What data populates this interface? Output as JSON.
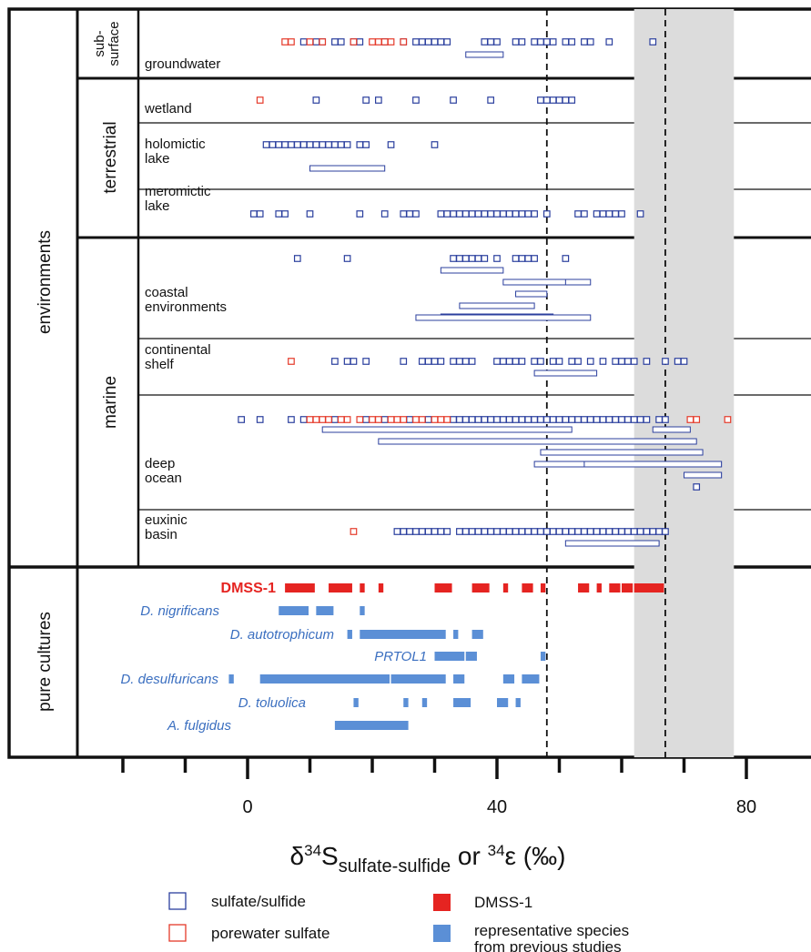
{
  "chart_data": {
    "type": "scatter",
    "xlabel": "δ34Ssulfate-sulfide or 34ε (‰)",
    "xlabel_parts": {
      "delta": "δ",
      "sup1": "34",
      "S": "S",
      "sub": "sulfate-sulfide",
      "or": " or ",
      "sup2": "34",
      "eps": "ε (‰)"
    },
    "xlim": [
      -20,
      90
    ],
    "xticks": [
      0,
      40,
      80
    ],
    "tick_labels": [
      "0",
      "40",
      "80"
    ],
    "reference_lines": [
      48,
      67
    ],
    "shaded_range": [
      62,
      78
    ],
    "colors": {
      "sulfide": "#2b3f9e",
      "porewater": "#e53a2a",
      "dmss": "#e52421",
      "species": "#5b8fd6"
    },
    "group_labels": {
      "environments": "environments",
      "subsurface": "sub-\nsurface",
      "terrestrial": "terrestrial",
      "marine": "marine",
      "pure_cultures": "pure cultures"
    },
    "categories": [
      {
        "name": "groundwater",
        "group": "sub-surface",
        "sulfide": [
          9,
          11,
          12,
          14,
          15,
          17,
          18,
          22,
          25,
          27,
          28,
          29,
          30,
          31,
          32,
          38,
          39,
          40,
          43,
          44,
          46,
          47,
          48,
          49,
          51,
          52,
          54,
          55,
          58,
          65
        ],
        "porewater": [
          6,
          7,
          10,
          12,
          17,
          20,
          21,
          22,
          23,
          25
        ],
        "ranges": [
          [
            35,
            41
          ]
        ]
      },
      {
        "name": "wetland",
        "group": "terrestrial",
        "sulfide": [
          11,
          19,
          21,
          27,
          33,
          39,
          47,
          48,
          49,
          50,
          51,
          52
        ],
        "porewater": [
          2
        ],
        "ranges": []
      },
      {
        "name": "holomictic lake",
        "group": "terrestrial",
        "sulfide": [
          3,
          4,
          5,
          6,
          7,
          8,
          9,
          10,
          11,
          12,
          13,
          14,
          15,
          16,
          18,
          19,
          23,
          30
        ],
        "porewater": [],
        "ranges": [
          [
            10,
            22
          ]
        ]
      },
      {
        "name": "meromictic lake",
        "group": "terrestrial",
        "sulfide": [
          1,
          2,
          5,
          6,
          10,
          18,
          22,
          25,
          26,
          27,
          31,
          32,
          33,
          34,
          35,
          36,
          37,
          38,
          39,
          40,
          41,
          42,
          43,
          44,
          45,
          46,
          48,
          53,
          54,
          56,
          57,
          58,
          59,
          60,
          63
        ],
        "porewater": [],
        "ranges": []
      },
      {
        "name": "coastal environments",
        "group": "marine",
        "sulfide": [
          8,
          16,
          33,
          34,
          35,
          36,
          37,
          38,
          40,
          43,
          44,
          45,
          46,
          51
        ],
        "porewater": [],
        "ranges": [
          [
            31,
            41
          ],
          [
            43,
            55
          ],
          [
            41,
            51
          ],
          [
            43,
            48
          ],
          [
            34,
            46
          ],
          [
            31,
            49
          ],
          [
            27,
            55
          ]
        ]
      },
      {
        "name": "continental shelf",
        "group": "marine",
        "sulfide": [
          14,
          16,
          17,
          19,
          25,
          28,
          29,
          30,
          31,
          33,
          34,
          35,
          36,
          40,
          41,
          42,
          43,
          44,
          46,
          47,
          49,
          50,
          52,
          53,
          55,
          57,
          59,
          60,
          61,
          62,
          64,
          67,
          69,
          70
        ],
        "porewater": [
          7
        ],
        "ranges": [
          [
            46,
            56
          ]
        ]
      },
      {
        "name": "deep ocean",
        "group": "marine",
        "sulfide": [
          -1,
          2,
          7,
          9,
          14,
          19,
          22,
          26,
          29,
          33,
          34,
          35,
          36,
          37,
          38,
          39,
          40,
          41,
          42,
          43,
          44,
          45,
          46,
          47,
          48,
          49,
          50,
          51,
          52,
          53,
          54,
          55,
          56,
          57,
          58,
          59,
          60,
          61,
          62,
          63,
          64,
          66,
          67
        ],
        "porewater": [
          10,
          11,
          12,
          13,
          15,
          16,
          18,
          20,
          21,
          23,
          24,
          25,
          27,
          28,
          30,
          31,
          32,
          71,
          72,
          77
        ],
        "ranges": [
          [
            12,
            52
          ],
          [
            65,
            71
          ],
          [
            21,
            72
          ],
          [
            47,
            73
          ],
          [
            46,
            76
          ],
          [
            54,
            76
          ],
          [
            70,
            76
          ],
          [
            70,
            76
          ]
        ],
        "extra_points": [
          72
        ]
      },
      {
        "name": "euxinic basin",
        "group": "marine",
        "sulfide": [
          24,
          25,
          26,
          27,
          28,
          29,
          30,
          31,
          32,
          34,
          35,
          36,
          37,
          38,
          39,
          40,
          41,
          42,
          43,
          44,
          45,
          46,
          47,
          48,
          49,
          50,
          51,
          52,
          53,
          54,
          55,
          56,
          57,
          58,
          59,
          60,
          61,
          62,
          63,
          64,
          65,
          66,
          67
        ],
        "porewater": [
          17
        ],
        "ranges": [
          [
            51,
            66
          ]
        ]
      }
    ],
    "pure_cultures": [
      {
        "name": "DMSS-1",
        "color": "dmss",
        "segments": [
          [
            6,
            11
          ],
          [
            13,
            17
          ],
          [
            18,
            19
          ],
          [
            21,
            22
          ],
          [
            30,
            33
          ],
          [
            36,
            39
          ],
          [
            41,
            42
          ],
          [
            44,
            46
          ],
          [
            47,
            48
          ],
          [
            53,
            55
          ],
          [
            56,
            57
          ],
          [
            58,
            60
          ],
          [
            60,
            62
          ],
          [
            62,
            65
          ],
          [
            64,
            67
          ]
        ]
      },
      {
        "name": "D. nigrificans",
        "color": "species",
        "segments": [
          [
            5,
            10
          ],
          [
            11,
            14
          ],
          [
            18,
            19
          ]
        ]
      },
      {
        "name": "D. autotrophicum",
        "color": "species",
        "segments": [
          [
            16,
            17
          ],
          [
            18,
            32
          ],
          [
            33,
            34
          ],
          [
            36,
            38
          ]
        ]
      },
      {
        "name": "PRTOL1",
        "color": "species",
        "segments": [
          [
            30,
            35
          ],
          [
            35,
            37
          ],
          [
            47,
            48
          ]
        ]
      },
      {
        "name": "D. desulfuricans",
        "color": "species",
        "segments": [
          [
            -3,
            -2
          ],
          [
            2,
            23
          ],
          [
            23,
            32
          ],
          [
            33,
            35
          ],
          [
            41,
            43
          ],
          [
            44,
            47
          ]
        ]
      },
      {
        "name": "D. toluolica",
        "color": "species",
        "segments": [
          [
            17,
            18
          ],
          [
            25,
            26
          ],
          [
            28,
            29
          ],
          [
            33,
            36
          ],
          [
            40,
            42
          ],
          [
            43,
            44
          ]
        ]
      },
      {
        "name": "A. fulgidus",
        "color": "species",
        "segments": [
          [
            14,
            26
          ]
        ]
      }
    ],
    "legend": [
      {
        "label": "sulfate/sulfide",
        "type": "open",
        "color": "sulfide"
      },
      {
        "label": "porewater sulfate",
        "type": "open",
        "color": "porewater"
      },
      {
        "label": "DMSS-1",
        "type": "filled",
        "color": "dmss"
      },
      {
        "label": "representative species\nfrom previous studies",
        "type": "filled",
        "color": "species"
      }
    ]
  }
}
